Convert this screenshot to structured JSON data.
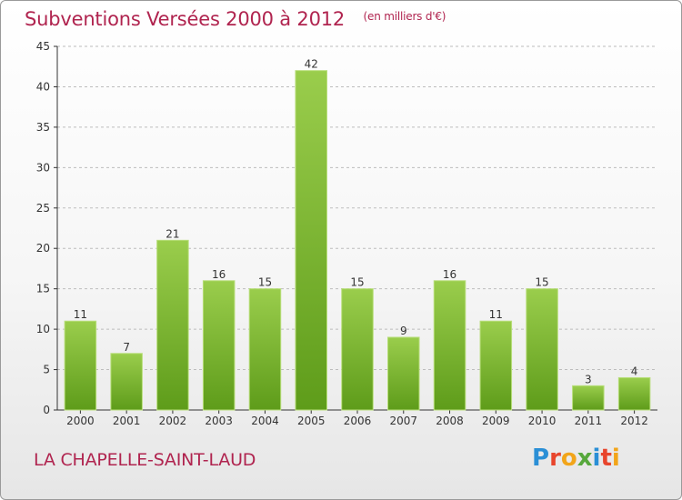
{
  "header": {
    "title": "Subventions Versées 2000 à 2012",
    "unit": "(en milliers d'€)"
  },
  "footer": {
    "commune": "LA CHAPELLE-SAINT-LAUD",
    "logo_text": "Proxiti",
    "logo_letters": [
      {
        "ch": "P",
        "color": "#2a8fd6"
      },
      {
        "ch": "r",
        "color": "#e8452c"
      },
      {
        "ch": "o",
        "color": "#f2a51a"
      },
      {
        "ch": "x",
        "color": "#57a83c"
      },
      {
        "ch": "i",
        "color": "#2a8fd6"
      },
      {
        "ch": "t",
        "color": "#e8452c"
      },
      {
        "ch": "i",
        "color": "#f2a51a"
      }
    ]
  },
  "colors": {
    "accent": "#b0244f",
    "bar_top": "#9acd4c",
    "bar_bottom": "#5e9c1a",
    "grid": "#bdbdbd",
    "axis": "#333333"
  },
  "chart_data": {
    "type": "bar",
    "title": "Subventions Versées 2000 à 2012",
    "xlabel": "",
    "ylabel": "",
    "categories": [
      "2000",
      "2001",
      "2002",
      "2003",
      "2004",
      "2005",
      "2006",
      "2007",
      "2008",
      "2009",
      "2010",
      "2011",
      "2012"
    ],
    "values": [
      11,
      7,
      21,
      16,
      15,
      42,
      15,
      9,
      16,
      11,
      15,
      3,
      4
    ],
    "ylim": [
      0,
      45
    ],
    "yticks": [
      0,
      5,
      10,
      15,
      20,
      25,
      30,
      35,
      40,
      45
    ],
    "grid": true,
    "legend": "none"
  }
}
